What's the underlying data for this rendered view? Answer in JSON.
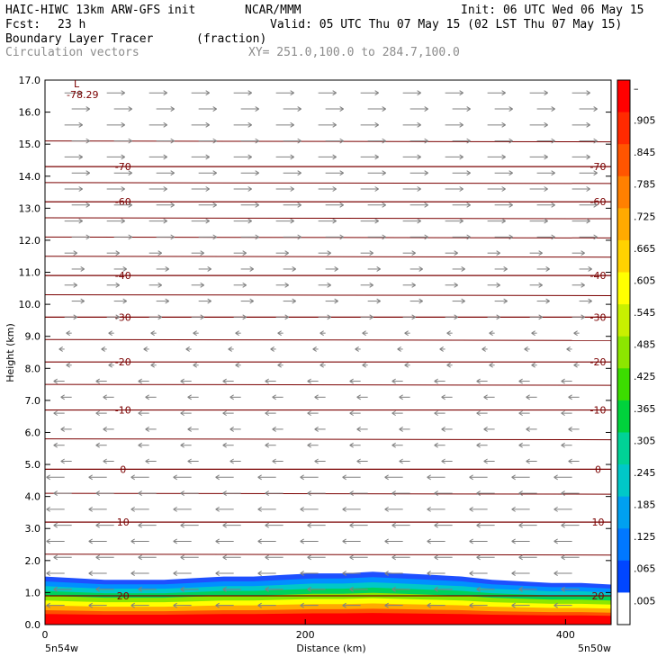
{
  "header": {
    "line1_left": "HAIC-HIWC 13km ARW-GFS init",
    "line1_mid": "NCAR/MMM",
    "line1_right": "Init: 06 UTC Wed 06 May 15",
    "line2_fcst_label": "Fcst:",
    "line2_fcst_value": "23 h",
    "line2_valid": "Valid: 05 UTC Thu 07 May 15 (02 LST Thu 07 May 15)",
    "field_name": "Boundary Layer Tracer",
    "field_units": "(fraction)",
    "vector_label": "Circulation vectors",
    "xy_label": "XY= 251.0,100.0 to 284.7,100.0"
  },
  "chart_data": {
    "type": "heatmap",
    "ylabel": "Height (km)",
    "xlabel": "Distance (km)",
    "xlim": [
      0,
      435
    ],
    "ylim": [
      0.0,
      17.0
    ],
    "y_ticks": [
      "0.0",
      "1.0",
      "2.0",
      "3.0",
      "4.0",
      "5.0",
      "6.0",
      "7.0",
      "8.0",
      "9.0",
      "10.0",
      "11.0",
      "12.0",
      "13.0",
      "14.0",
      "15.0",
      "16.0",
      "17.0"
    ],
    "x_ticks": [
      "0",
      "200",
      "400"
    ],
    "x_tick_values": [
      0,
      200,
      400
    ],
    "x_end_left": "5n54w",
    "x_end_right": "5n50w",
    "colorbar": {
      "labels": [
        "–",
        ".905",
        ".845",
        ".785",
        ".725",
        ".665",
        ".605",
        ".545",
        ".485",
        ".425",
        ".365",
        ".305",
        ".245",
        ".185",
        ".125",
        ".065",
        ".005"
      ],
      "colors": [
        "#ff0000",
        "#ff2a00",
        "#ff5500",
        "#ff8000",
        "#ffaa00",
        "#ffd200",
        "#ffff00",
        "#c8f000",
        "#8ce600",
        "#3cdc00",
        "#00d23c",
        "#00d296",
        "#00c8c8",
        "#00a0f0",
        "#0078ff",
        "#0046ff",
        "#ffffff"
      ]
    },
    "isotherms": [
      {
        "label": "-70",
        "height": 14.3
      },
      {
        "label": "-60",
        "height": 13.2
      },
      {
        "label": "-40",
        "height": 10.9
      },
      {
        "label": "-30",
        "height": 9.6
      },
      {
        "label": "-20",
        "height": 8.2
      },
      {
        "label": "-10",
        "height": 6.7
      },
      {
        "label": "0",
        "height": 4.85
      },
      {
        "label": "10",
        "height": 3.2
      },
      {
        "label": "20",
        "height": 0.9
      }
    ],
    "low_label": "L",
    "low_value": "-78.29",
    "tracer_top_km": [
      1.5,
      1.45,
      1.4,
      1.4,
      1.4,
      1.45,
      1.5,
      1.5,
      1.55,
      1.6,
      1.6,
      1.65,
      1.6,
      1.55,
      1.5,
      1.4,
      1.35,
      1.3,
      1.3,
      1.25
    ]
  }
}
